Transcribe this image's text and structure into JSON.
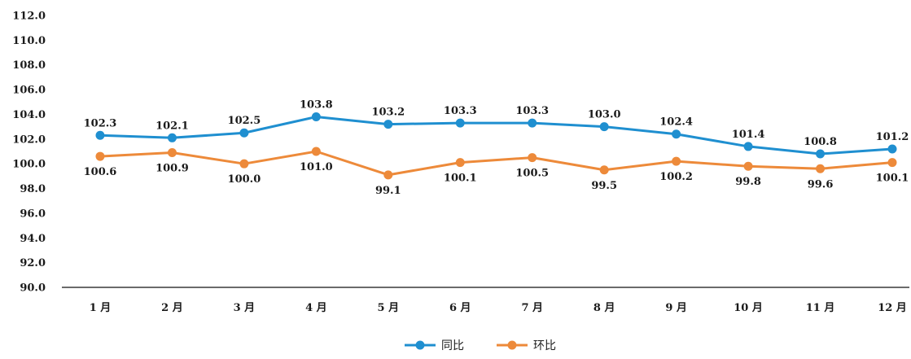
{
  "chart_data": {
    "type": "line",
    "title": "",
    "xlabel": "",
    "ylabel": "",
    "categories": [
      "1 月",
      "2 月",
      "3 月",
      "4 月",
      "5 月",
      "6 月",
      "7 月",
      "8 月",
      "9 月",
      "10 月",
      "11 月",
      "12 月"
    ],
    "ylim": [
      90.0,
      112.0
    ],
    "y_ticks": [
      "90.0",
      "92.0",
      "94.0",
      "96.0",
      "98.0",
      "100.0",
      "102.0",
      "104.0",
      "106.0",
      "108.0",
      "110.0",
      "112.0"
    ],
    "grid": false,
    "legend_position": "bottom",
    "series": [
      {
        "name": "同比",
        "color": "#1f8fd0",
        "labels_position": "above",
        "values": [
          102.3,
          102.1,
          102.5,
          103.8,
          103.2,
          103.3,
          103.3,
          103.0,
          102.4,
          101.4,
          100.8,
          101.2
        ],
        "labels": [
          "102.3",
          "102.1",
          "102.5",
          "103.8",
          "103.2",
          "103.3",
          "103.3",
          "103.0",
          "102.4",
          "101.4",
          "100.8",
          "101.2"
        ]
      },
      {
        "name": "环比",
        "color": "#ed8a3a",
        "labels_position": "below",
        "values": [
          100.6,
          100.9,
          100.0,
          101.0,
          99.1,
          100.1,
          100.5,
          99.5,
          100.2,
          99.8,
          99.6,
          100.1
        ],
        "labels": [
          "100.6",
          "100.9",
          "100.0",
          "101.0",
          "99.1",
          "100.1",
          "100.5",
          "99.5",
          "100.2",
          "99.8",
          "99.6",
          "100.1"
        ]
      }
    ]
  }
}
